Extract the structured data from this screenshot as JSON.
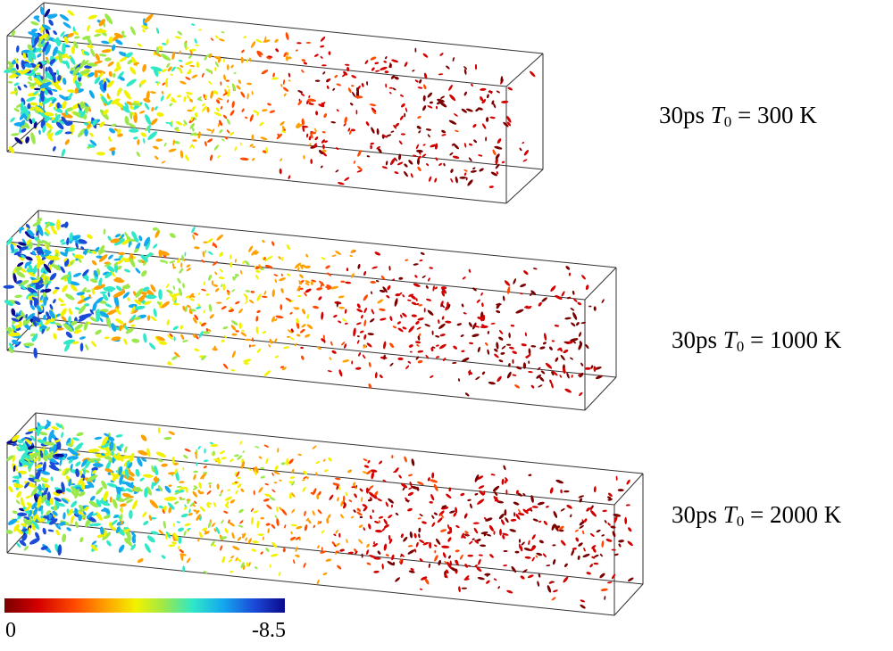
{
  "panels": [
    {
      "time": "30ps",
      "symbol": "T",
      "subscript": "0",
      "equals": " = ",
      "value": "300 K"
    },
    {
      "time": "30ps",
      "symbol": "T",
      "subscript": "0",
      "equals": " = ",
      "value": "1000 K"
    },
    {
      "time": "30ps",
      "symbol": "T",
      "subscript": "0",
      "equals": " = ",
      "value": "2000 K"
    }
  ],
  "colorbar": {
    "min_label": "0",
    "max_label": "-8.5",
    "colors": [
      "#7a0000",
      "#d40000",
      "#ff4a00",
      "#ffa000",
      "#f2f200",
      "#9be84a",
      "#2fe8c8",
      "#14a8ee",
      "#1a4ad8",
      "#0a0a8c"
    ]
  }
}
